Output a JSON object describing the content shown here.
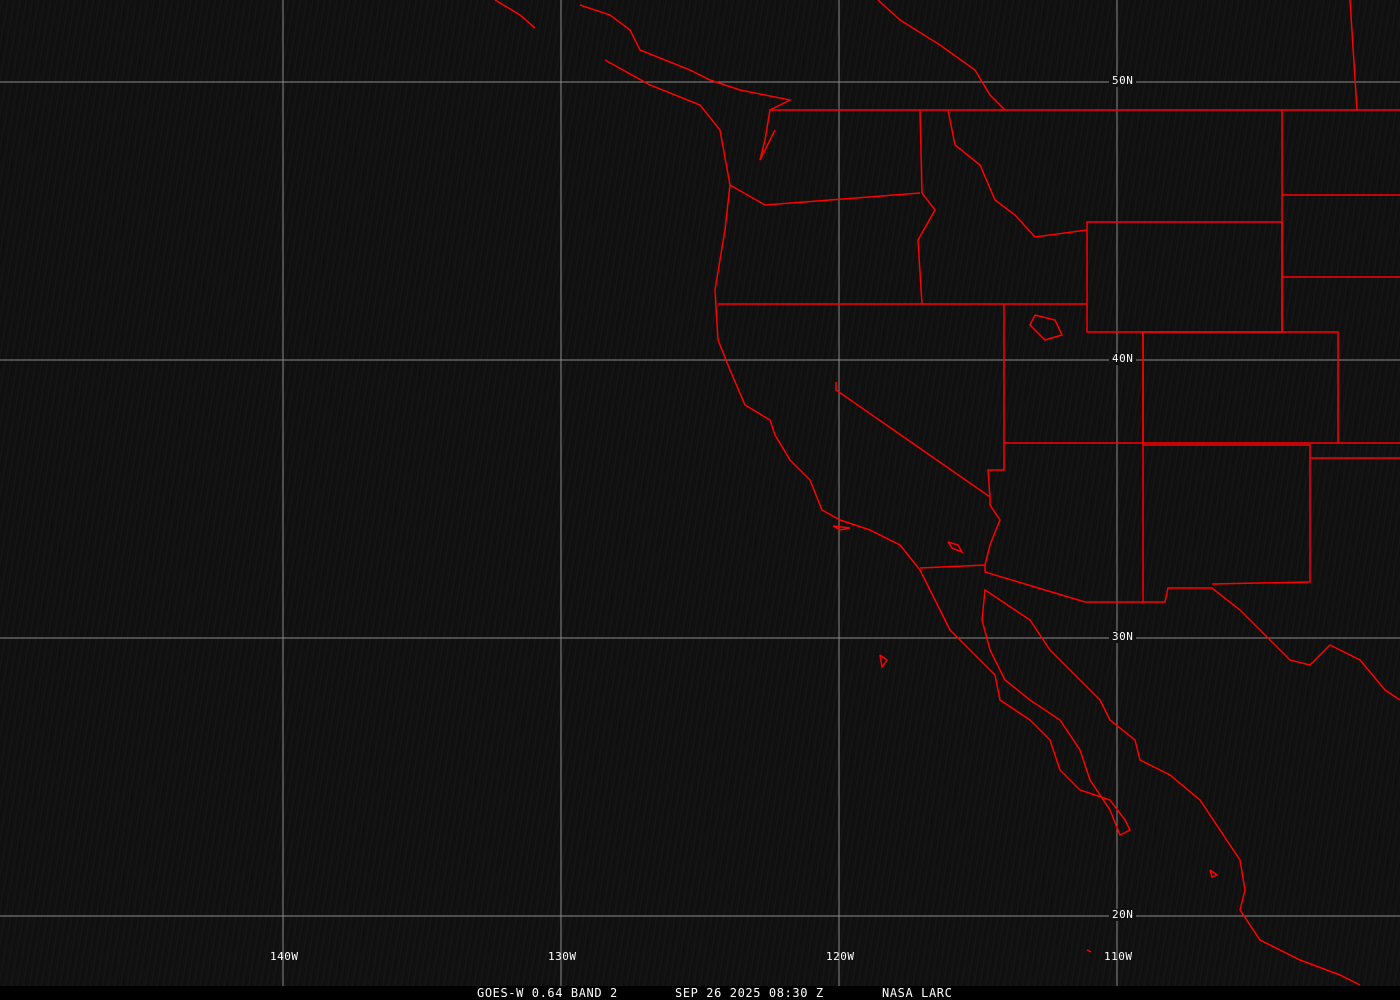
{
  "map": {
    "lat_labels": [
      "50N",
      "40N",
      "30N",
      "20N"
    ],
    "lon_labels": [
      "140W",
      "130W",
      "120W",
      "110W"
    ],
    "grid_color": "#8a8a8a",
    "boundary_color": "#ff0000"
  },
  "caption": {
    "product": "GOES-W 0.64 BAND 2",
    "datetime": "SEP 26 2025 08:30 Z",
    "source": "NASA LARC"
  }
}
